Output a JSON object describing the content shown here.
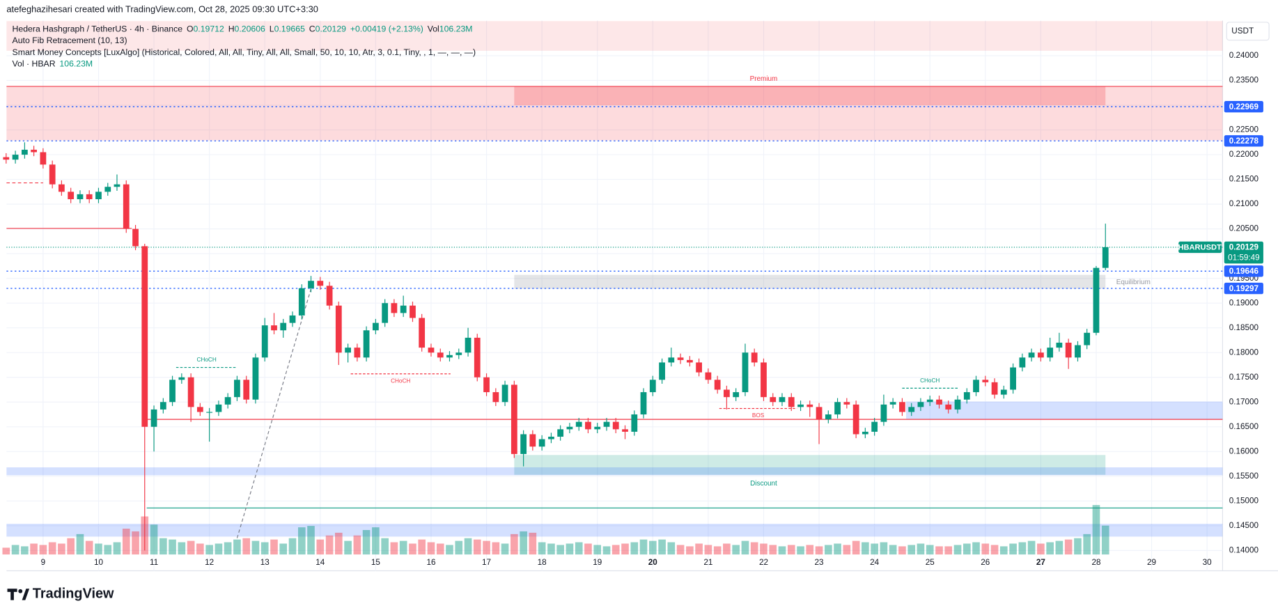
{
  "header": {
    "credit": "atefeghazihesari created with TradingView.com, Oct 28, 2025 09:30 UTC+3:30",
    "currency": "USDT",
    "brand": "TradingView"
  },
  "chart_data": {
    "type": "candlestick",
    "legend": {
      "title": "Hedera Hashgraph / TetherUS · 4h · Binance",
      "fields": [
        {
          "key": "O",
          "value": "0.19712"
        },
        {
          "key": "H",
          "value": "0.20606"
        },
        {
          "key": "L",
          "value": "0.19665"
        },
        {
          "key": "C",
          "value": "0.20129"
        },
        {
          "value": "+0.00419 (+2.13%)"
        },
        {
          "key": "Vol",
          "value": "106.23M"
        }
      ],
      "indicators": [
        "Auto Fib Retracement (10, 13)",
        "Smart Money Concepts [LuxAlgo] (Historical, Colored, All, All, Tiny, All, All, Small, 50, 10, 10, Atr, 3, 0.1, Tiny, , 1, —, —, —)"
      ],
      "volume": {
        "key": "Vol · HBAR",
        "value": "106.23M"
      }
    },
    "up_color": "#089981",
    "down_color": "#f23645",
    "x": [
      8.333,
      8.5,
      8.667,
      8.833,
      9,
      9.167,
      9.333,
      9.5,
      9.667,
      9.833,
      10,
      10.167,
      10.333,
      10.5,
      10.667,
      10.833,
      11,
      11.167,
      11.333,
      11.5,
      11.667,
      11.833,
      12,
      12.167,
      12.333,
      12.5,
      12.667,
      12.833,
      13,
      13.167,
      13.333,
      13.5,
      13.667,
      13.833,
      14,
      14.167,
      14.333,
      14.5,
      14.667,
      14.833,
      15,
      15.167,
      15.333,
      15.5,
      15.667,
      15.833,
      16,
      16.167,
      16.333,
      16.5,
      16.667,
      16.833,
      17,
      17.167,
      17.333,
      17.5,
      17.667,
      17.833,
      18,
      18.167,
      18.333,
      18.5,
      18.667,
      18.833,
      19,
      19.167,
      19.333,
      19.5,
      19.667,
      19.833,
      20,
      20.167,
      20.333,
      20.5,
      20.667,
      20.833,
      21,
      21.167,
      21.333,
      21.5,
      21.667,
      21.833,
      22,
      22.167,
      22.333,
      22.5,
      22.667,
      22.833,
      23,
      23.167,
      23.333,
      23.5,
      23.667,
      23.833,
      24,
      24.167,
      24.333,
      24.5,
      24.667,
      24.833,
      25,
      25.167,
      25.333,
      25.5,
      25.667,
      25.833,
      26,
      26.167,
      26.333,
      26.5,
      26.667,
      26.833,
      27,
      27.167,
      27.333,
      27.5,
      27.667,
      27.833,
      28,
      28.167
    ],
    "candles": [
      [
        0.2195,
        0.2203,
        0.2182,
        0.219
      ],
      [
        0.219,
        0.2208,
        0.2182,
        0.22
      ],
      [
        0.22,
        0.2225,
        0.2192,
        0.221
      ],
      [
        0.221,
        0.2218,
        0.2197,
        0.2205
      ],
      [
        0.2205,
        0.2213,
        0.2172,
        0.218
      ],
      [
        0.218,
        0.2188,
        0.2132,
        0.214
      ],
      [
        0.214,
        0.2148,
        0.2117,
        0.2125
      ],
      [
        0.2125,
        0.2133,
        0.2102,
        0.211
      ],
      [
        0.211,
        0.2128,
        0.2102,
        0.212
      ],
      [
        0.212,
        0.2128,
        0.2102,
        0.211
      ],
      [
        0.211,
        0.2133,
        0.2102,
        0.2125
      ],
      [
        0.2125,
        0.2143,
        0.2117,
        0.2135
      ],
      [
        0.2135,
        0.216,
        0.2127,
        0.214
      ],
      [
        0.214,
        0.2148,
        0.2042,
        0.205
      ],
      [
        0.205,
        0.2058,
        0.2007,
        0.2015
      ],
      [
        0.2015,
        0.202,
        0.14,
        0.165
      ],
      [
        0.165,
        0.1693,
        0.16,
        0.1685
      ],
      [
        0.1685,
        0.1708,
        0.1677,
        0.17
      ],
      [
        0.17,
        0.1753,
        0.1692,
        0.1745
      ],
      [
        0.1745,
        0.1758,
        0.1737,
        0.175
      ],
      [
        0.175,
        0.1758,
        0.166,
        0.169
      ],
      [
        0.169,
        0.1698,
        0.1672,
        0.168
      ],
      [
        0.168,
        0.1688,
        0.162,
        0.168
      ],
      [
        0.168,
        0.1703,
        0.1672,
        0.1695
      ],
      [
        0.1695,
        0.1718,
        0.1687,
        0.171
      ],
      [
        0.171,
        0.1753,
        0.1702,
        0.1745
      ],
      [
        0.1745,
        0.1753,
        0.1697,
        0.1705
      ],
      [
        0.1705,
        0.1798,
        0.1697,
        0.179
      ],
      [
        0.179,
        0.187,
        0.1782,
        0.1855
      ],
      [
        0.1855,
        0.188,
        0.1837,
        0.1845
      ],
      [
        0.1845,
        0.1868,
        0.183,
        0.186
      ],
      [
        0.186,
        0.1883,
        0.1852,
        0.1875
      ],
      [
        0.1875,
        0.1938,
        0.1867,
        0.193
      ],
      [
        0.193,
        0.1955,
        0.1922,
        0.1945
      ],
      [
        0.1945,
        0.1953,
        0.1927,
        0.1935
      ],
      [
        0.1935,
        0.1943,
        0.1887,
        0.1895
      ],
      [
        0.1895,
        0.1903,
        0.1775,
        0.18
      ],
      [
        0.18,
        0.1818,
        0.178,
        0.181
      ],
      [
        0.181,
        0.1818,
        0.1782,
        0.179
      ],
      [
        0.179,
        0.1853,
        0.1782,
        0.1845
      ],
      [
        0.1845,
        0.1868,
        0.1837,
        0.186
      ],
      [
        0.186,
        0.1908,
        0.1852,
        0.19
      ],
      [
        0.19,
        0.1908,
        0.1872,
        0.188
      ],
      [
        0.188,
        0.1915,
        0.1872,
        0.1895
      ],
      [
        0.1895,
        0.1903,
        0.1862,
        0.187
      ],
      [
        0.187,
        0.1878,
        0.1802,
        0.181
      ],
      [
        0.181,
        0.1818,
        0.1792,
        0.18
      ],
      [
        0.18,
        0.1808,
        0.1782,
        0.179
      ],
      [
        0.179,
        0.1803,
        0.1782,
        0.1795
      ],
      [
        0.1795,
        0.1808,
        0.1787,
        0.18
      ],
      [
        0.18,
        0.185,
        0.1792,
        0.183
      ],
      [
        0.183,
        0.1838,
        0.1742,
        0.175
      ],
      [
        0.175,
        0.1758,
        0.1712,
        0.172
      ],
      [
        0.172,
        0.1728,
        0.1692,
        0.17
      ],
      [
        0.17,
        0.1743,
        0.1692,
        0.1735
      ],
      [
        0.1735,
        0.1743,
        0.1587,
        0.1595
      ],
      [
        0.1595,
        0.1643,
        0.157,
        0.1635
      ],
      [
        0.1635,
        0.1643,
        0.1602,
        0.161
      ],
      [
        0.161,
        0.1633,
        0.1602,
        0.1625
      ],
      [
        0.1625,
        0.1638,
        0.1617,
        0.163
      ],
      [
        0.163,
        0.1653,
        0.1622,
        0.1645
      ],
      [
        0.1645,
        0.1658,
        0.1637,
        0.165
      ],
      [
        0.165,
        0.1668,
        0.1642,
        0.166
      ],
      [
        0.166,
        0.1668,
        0.1637,
        0.1645
      ],
      [
        0.1645,
        0.1658,
        0.1637,
        0.165
      ],
      [
        0.165,
        0.1668,
        0.1642,
        0.166
      ],
      [
        0.166,
        0.1668,
        0.1637,
        0.1645
      ],
      [
        0.1645,
        0.1653,
        0.1625,
        0.164
      ],
      [
        0.164,
        0.1683,
        0.1632,
        0.1675
      ],
      [
        0.1675,
        0.1728,
        0.1667,
        0.172
      ],
      [
        0.172,
        0.1753,
        0.1712,
        0.1745
      ],
      [
        0.1745,
        0.1788,
        0.1737,
        0.178
      ],
      [
        0.178,
        0.181,
        0.1772,
        0.179
      ],
      [
        0.179,
        0.1798,
        0.1777,
        0.1785
      ],
      [
        0.1785,
        0.1793,
        0.1772,
        0.178
      ],
      [
        0.178,
        0.1788,
        0.1752,
        0.176
      ],
      [
        0.176,
        0.1768,
        0.1737,
        0.1745
      ],
      [
        0.1745,
        0.1753,
        0.1717,
        0.1725
      ],
      [
        0.1725,
        0.1733,
        0.1685,
        0.171
      ],
      [
        0.171,
        0.1728,
        0.1702,
        0.172
      ],
      [
        0.172,
        0.1818,
        0.1712,
        0.18
      ],
      [
        0.18,
        0.1808,
        0.1772,
        0.178
      ],
      [
        0.178,
        0.1788,
        0.1702,
        0.171
      ],
      [
        0.171,
        0.1718,
        0.1692,
        0.17
      ],
      [
        0.17,
        0.1718,
        0.1692,
        0.171
      ],
      [
        0.171,
        0.1718,
        0.1682,
        0.169
      ],
      [
        0.169,
        0.1703,
        0.1682,
        0.1695
      ],
      [
        0.1695,
        0.1703,
        0.167,
        0.169
      ],
      [
        0.169,
        0.1698,
        0.1615,
        0.1665
      ],
      [
        0.1665,
        0.1683,
        0.1657,
        0.1675
      ],
      [
        0.1675,
        0.1708,
        0.1667,
        0.17
      ],
      [
        0.17,
        0.1708,
        0.1687,
        0.1695
      ],
      [
        0.1695,
        0.1703,
        0.1627,
        0.1635
      ],
      [
        0.1635,
        0.1648,
        0.1627,
        0.164
      ],
      [
        0.164,
        0.1668,
        0.1632,
        0.166
      ],
      [
        0.166,
        0.1715,
        0.1652,
        0.1695
      ],
      [
        0.1695,
        0.1708,
        0.1687,
        0.17
      ],
      [
        0.17,
        0.1708,
        0.1672,
        0.168
      ],
      [
        0.168,
        0.1698,
        0.1672,
        0.169
      ],
      [
        0.169,
        0.1708,
        0.1682,
        0.17
      ],
      [
        0.17,
        0.1713,
        0.1692,
        0.1705
      ],
      [
        0.1705,
        0.1713,
        0.1687,
        0.1695
      ],
      [
        0.1695,
        0.1703,
        0.1677,
        0.1685
      ],
      [
        0.1685,
        0.1713,
        0.1677,
        0.1705
      ],
      [
        0.1705,
        0.1728,
        0.1697,
        0.172
      ],
      [
        0.172,
        0.1753,
        0.1712,
        0.1745
      ],
      [
        0.1745,
        0.1753,
        0.1732,
        0.174
      ],
      [
        0.174,
        0.1748,
        0.1707,
        0.1715
      ],
      [
        0.1715,
        0.1733,
        0.1707,
        0.1725
      ],
      [
        0.1725,
        0.1778,
        0.1717,
        0.177
      ],
      [
        0.177,
        0.1798,
        0.1762,
        0.179
      ],
      [
        0.179,
        0.1808,
        0.1782,
        0.18
      ],
      [
        0.18,
        0.1808,
        0.1782,
        0.179
      ],
      [
        0.179,
        0.183,
        0.1782,
        0.181
      ],
      [
        0.181,
        0.184,
        0.1802,
        0.182
      ],
      [
        0.182,
        0.1828,
        0.1767,
        0.179
      ],
      [
        0.179,
        0.1823,
        0.1782,
        0.1815
      ],
      [
        0.1815,
        0.1848,
        0.1807,
        0.184
      ],
      [
        0.184,
        0.1975,
        0.1835,
        0.19712
      ],
      [
        0.19712,
        0.20606,
        0.19665,
        0.20129
      ]
    ],
    "volume": [
      25,
      35,
      30,
      40,
      35,
      45,
      40,
      60,
      75,
      50,
      40,
      35,
      45,
      95,
      85,
      140,
      110,
      60,
      55,
      45,
      50,
      40,
      35,
      40,
      45,
      55,
      60,
      50,
      45,
      55,
      40,
      60,
      100,
      105,
      55,
      70,
      80,
      50,
      70,
      90,
      100,
      60,
      45,
      50,
      40,
      55,
      45,
      40,
      35,
      50,
      60,
      55,
      50,
      45,
      40,
      75,
      85,
      80,
      45,
      40,
      35,
      40,
      45,
      40,
      35,
      30,
      35,
      40,
      45,
      55,
      50,
      55,
      45,
      35,
      30,
      40,
      35,
      30,
      40,
      35,
      50,
      45,
      40,
      35,
      30,
      35,
      30,
      35,
      30,
      35,
      40,
      35,
      50,
      45,
      40,
      45,
      35,
      30,
      35,
      40,
      35,
      30,
      30,
      35,
      40,
      45,
      40,
      35,
      30,
      40,
      45,
      50,
      40,
      45,
      50,
      55,
      60,
      75,
      182,
      106.23
    ],
    "volume_ylim": [
      0,
      600
    ],
    "xlim": [
      8.34,
      30.28
    ],
    "xticks": [
      9,
      10,
      11,
      12,
      13,
      14,
      15,
      16,
      17,
      18,
      19,
      20,
      21,
      22,
      23,
      24,
      25,
      26,
      27,
      28,
      29,
      30
    ],
    "bold_xticks": [
      20,
      27
    ],
    "ylim": [
      0.1359,
      0.2471
    ],
    "yticks": [
      {
        "value": 0.14,
        "label": "0.14000"
      },
      {
        "value": 0.145,
        "label": "0.14500"
      },
      {
        "value": 0.15,
        "label": "0.15000"
      },
      {
        "value": 0.155,
        "label": "0.15500"
      },
      {
        "value": 0.16,
        "label": "0.16000"
      },
      {
        "value": 0.165,
        "label": "0.16500"
      },
      {
        "value": 0.17,
        "label": "0.17000"
      },
      {
        "value": 0.175,
        "label": "0.17500"
      },
      {
        "value": 0.18,
        "label": "0.18000"
      },
      {
        "value": 0.185,
        "label": "0.18500"
      },
      {
        "value": 0.19,
        "label": "0.19000"
      },
      {
        "value": 0.195,
        "label": "0.19500"
      },
      {
        "value": 0.2,
        "label": "0.20000"
      },
      {
        "value": 0.205,
        "label": "0.20500"
      },
      {
        "value": 0.21,
        "label": "0.21000"
      },
      {
        "value": 0.215,
        "label": "0.21500"
      },
      {
        "value": 0.22,
        "label": "0.22000"
      },
      {
        "value": 0.225,
        "label": "0.22500"
      },
      {
        "value": 0.23,
        "label": "0.23000"
      },
      {
        "value": 0.235,
        "label": "0.23500"
      },
      {
        "value": 0.24,
        "label": "0.24000"
      }
    ],
    "grid": true,
    "zones": [
      {
        "x": [
          8.34,
          30.28
        ],
        "y": [
          0.241,
          0.247
        ],
        "color": "rgba(242,54,69,0.12)"
      },
      {
        "x": [
          8.34,
          30.28
        ],
        "y": [
          0.2229,
          0.2338
        ],
        "color": "rgba(242,54,69,0.18)"
      },
      {
        "x": [
          17.5,
          28.167
        ],
        "y": [
          0.23,
          0.2338
        ],
        "color": "rgba(242,54,69,0.25)"
      },
      {
        "x": [
          17.5,
          28.167
        ],
        "y": [
          0.1929,
          0.1957
        ],
        "color": "rgba(120,123,134,0.2)"
      },
      {
        "x": [
          17.5,
          28.167
        ],
        "y": [
          0.1553,
          0.1593
        ],
        "color": "rgba(8,153,129,0.2)"
      },
      {
        "x": [
          8.34,
          30.28
        ],
        "y": [
          0.1552,
          0.1568
        ],
        "color": "rgba(41,98,255,0.2)"
      },
      {
        "x": [
          24.57,
          30.28
        ],
        "y": [
          0.1665,
          0.1701
        ],
        "color": "rgba(41,98,255,0.2)"
      },
      {
        "x": [
          8.34,
          30.28
        ],
        "y": [
          0.1428,
          0.1454
        ],
        "color": "rgba(41,98,255,0.2)"
      }
    ],
    "lines": [
      {
        "x": [
          8.34,
          30.28
        ],
        "y": 0.2338,
        "color": "#f23645"
      },
      {
        "x": [
          8.34,
          9.0
        ],
        "y": 0.2143,
        "color": "#f23645",
        "dash": true
      },
      {
        "x": [
          8.34,
          10.6
        ],
        "y": 0.2051,
        "color": "#f23645"
      },
      {
        "x": [
          10.87,
          30.28
        ],
        "y": 0.1665,
        "color": "#f23645"
      },
      {
        "x": [
          10.87,
          30.28
        ],
        "y": 0.1486,
        "color": "#089981"
      }
    ],
    "structures": [
      {
        "label": "CHoCH",
        "x": [
          11.4,
          12.5
        ],
        "y": 0.177,
        "color": "#089981"
      },
      {
        "label": "CHoCH",
        "x": [
          14.55,
          16.35
        ],
        "y": 0.1757,
        "color": "#f23645"
      },
      {
        "label": "BOS",
        "x": [
          21.2,
          22.6
        ],
        "y": 0.1687,
        "color": "#f23645"
      },
      {
        "label": "CHoCH",
        "x": [
          24.5,
          25.5
        ],
        "y": 0.1728,
        "color": "#089981"
      }
    ],
    "zone_labels": [
      {
        "label": "Premium",
        "x": 22.0,
        "y": 0.2353,
        "color": "#f23645"
      },
      {
        "label": "Equilibrium",
        "x": 28.67,
        "y": 0.1942,
        "color": "#9598a1"
      },
      {
        "label": "Discount",
        "x": 22.0,
        "y": 0.1535,
        "color": "#089981"
      }
    ],
    "fib_trend": {
      "x": [
        12.5,
        13.85
      ],
      "y": [
        0.1425,
        0.1935
      ]
    },
    "levels": [
      {
        "value": 0.22969,
        "color": "#2962ff"
      },
      {
        "value": 0.22278,
        "color": "#2962ff"
      },
      {
        "value": 0.19646,
        "color": "#2962ff"
      },
      {
        "value": 0.19297,
        "color": "#2962ff"
      }
    ],
    "last_price": {
      "symbol": "HBARUSDT",
      "value": 0.20129,
      "countdown": "01:59:49",
      "color": "#089981"
    }
  }
}
